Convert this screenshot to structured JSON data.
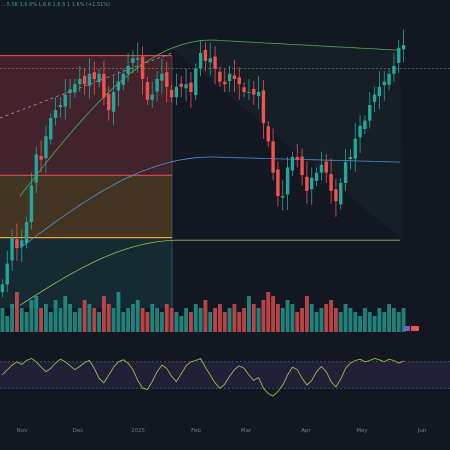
{
  "legend": {
    "text": "...5.5K 1,6.6% L,6.K 1,6.5 1 1.6% (+1.51%)"
  },
  "colors": {
    "background": "#131722",
    "up": "#26a69a",
    "down": "#ef5350",
    "zone_top": "#ef5350",
    "zone_mid": "#f5a623",
    "zone_low": "#26a69a",
    "channel_upper": "#4caf50",
    "channel_mid": "#4a90d9",
    "channel_lower": "#8bc34a",
    "osc_line": "#8bc34a",
    "osc_band": "#7e57c2",
    "grid": "#2a2e39",
    "axis_text": "#787b86"
  },
  "chart_data": [
    {
      "type": "candlestick",
      "title": "",
      "x_ticks": [
        "Nov",
        "Dec",
        "2025",
        "Feb",
        "Mar",
        "Apr",
        "May",
        "Jun"
      ],
      "y_range": [
        0,
        100
      ],
      "grid": false,
      "close": [
        6,
        14,
        24,
        20,
        23,
        30,
        44,
        56,
        54,
        63,
        70,
        73,
        75,
        79,
        81,
        83,
        85,
        83,
        87,
        85,
        87,
        78,
        73,
        80,
        84,
        87,
        90,
        93,
        93,
        85,
        77,
        79,
        85,
        87,
        82,
        78,
        82,
        82,
        83,
        80,
        89,
        95,
        92,
        93,
        89,
        84,
        83,
        87,
        85,
        83,
        80,
        80,
        79,
        80,
        68,
        61,
        49,
        40,
        40,
        51,
        55,
        54,
        48,
        42,
        47,
        49,
        52,
        49,
        42,
        38,
        45,
        53,
        55,
        62,
        67,
        69,
        75,
        79,
        82,
        84,
        87,
        90,
        97,
        98
      ],
      "annotations": {
        "zones": [
          "top",
          "mid",
          "low"
        ],
        "dashed_trendline": true,
        "dotted_level": true
      }
    },
    {
      "type": "bar",
      "title": "",
      "name": "volume",
      "values": [
        6,
        4,
        7,
        10,
        6,
        5,
        8,
        9,
        6,
        7,
        5,
        8,
        6,
        9,
        7,
        5,
        6,
        8,
        7,
        6,
        5,
        9,
        7,
        6,
        10,
        5,
        6,
        7,
        8,
        6,
        5,
        7,
        6,
        5,
        7,
        6,
        5,
        4,
        6,
        5,
        7,
        6,
        8,
        5,
        6,
        7,
        5,
        6,
        7,
        5,
        6,
        9,
        7,
        6,
        8,
        10,
        9,
        7,
        6,
        8,
        7,
        5,
        6,
        9,
        7,
        5,
        6,
        7,
        8,
        6,
        5,
        7,
        6,
        5,
        4,
        6,
        5,
        4,
        6,
        5,
        7,
        6,
        5,
        6
      ]
    },
    {
      "type": "line",
      "title": "",
      "name": "oscillator",
      "y_range": [
        0,
        100
      ],
      "band": [
        30,
        70
      ],
      "values": [
        50,
        58,
        65,
        70,
        66,
        72,
        75,
        70,
        62,
        55,
        60,
        68,
        74,
        70,
        64,
        58,
        63,
        69,
        72,
        60,
        45,
        38,
        50,
        62,
        70,
        73,
        68,
        58,
        42,
        30,
        28,
        40,
        55,
        65,
        60,
        48,
        40,
        52,
        64,
        70,
        72,
        75,
        62,
        50,
        38,
        30,
        36,
        48,
        58,
        64,
        60,
        50,
        42,
        46,
        30,
        22,
        18,
        25,
        35,
        50,
        62,
        58,
        45,
        35,
        42,
        55,
        63,
        55,
        40,
        32,
        44,
        60,
        68,
        72,
        74,
        70,
        72,
        75,
        73,
        70,
        74,
        72,
        68,
        71
      ]
    }
  ]
}
